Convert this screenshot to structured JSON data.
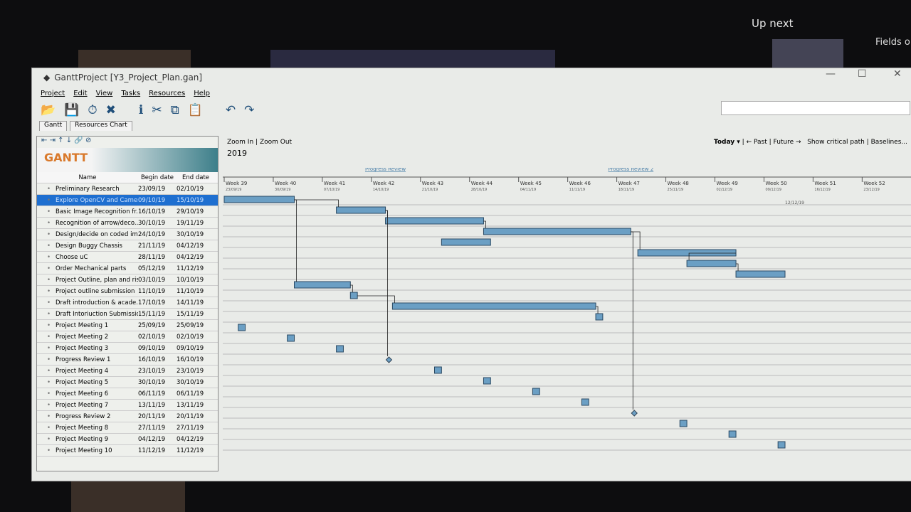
{
  "overlay": {
    "up_next": "Up next",
    "side_title": "Fields o"
  },
  "window": {
    "title": "GanttProject [Y3_Project_Plan.gan]",
    "controls": [
      "—",
      "☐",
      "✕"
    ]
  },
  "menu": [
    "Project",
    "Edit",
    "View",
    "Tasks",
    "Resources",
    "Help"
  ],
  "toolbar_icons": [
    "open-icon",
    "save-icon",
    "history-icon",
    "delete-icon",
    "info-icon",
    "cut-icon",
    "copy-icon",
    "paste-icon",
    "undo-icon",
    "redo-icon"
  ],
  "tabs": [
    "Gantt",
    "Resources Chart"
  ],
  "logo": "GANTT project",
  "table": {
    "headers": [
      "Name",
      "Begin date",
      "End date"
    ],
    "rows": [
      {
        "name": "Preliminary Research",
        "begin": "23/09/19",
        "end": "02/10/19"
      },
      {
        "name": "Explore OpenCV and Camer...",
        "begin": "09/10/19",
        "end": "15/10/19",
        "selected": true
      },
      {
        "name": "Basic Image Recognition fr...",
        "begin": "16/10/19",
        "end": "29/10/19"
      },
      {
        "name": "Recognition of arrow/deco...",
        "begin": "30/10/19",
        "end": "19/11/19"
      },
      {
        "name": "Design/decide on coded im...",
        "begin": "24/10/19",
        "end": "30/10/19"
      },
      {
        "name": "Design Buggy Chassis",
        "begin": "21/11/19",
        "end": "04/12/19"
      },
      {
        "name": "Choose uC",
        "begin": "28/11/19",
        "end": "04/12/19"
      },
      {
        "name": "Order Mechanical parts",
        "begin": "05/12/19",
        "end": "11/12/19"
      },
      {
        "name": "Project Outline, plan and ris...",
        "begin": "03/10/19",
        "end": "10/10/19"
      },
      {
        "name": "Project outline submission",
        "begin": "11/10/19",
        "end": "11/10/19"
      },
      {
        "name": "Draft introduction & acade...",
        "begin": "17/10/19",
        "end": "14/11/19"
      },
      {
        "name": "Draft Intoriuction Submission",
        "begin": "15/11/19",
        "end": "15/11/19"
      },
      {
        "name": "Project Meeting 1",
        "begin": "25/09/19",
        "end": "25/09/19"
      },
      {
        "name": "Project Meeting 2",
        "begin": "02/10/19",
        "end": "02/10/19"
      },
      {
        "name": "Project Meeting 3",
        "begin": "09/10/19",
        "end": "09/10/19"
      },
      {
        "name": "Progress Review 1",
        "begin": "16/10/19",
        "end": "16/10/19",
        "milestone": true
      },
      {
        "name": "Project Meeting 4",
        "begin": "23/10/19",
        "end": "23/10/19"
      },
      {
        "name": "Project Meeting 5",
        "begin": "30/10/19",
        "end": "30/10/19"
      },
      {
        "name": "Project Meeting 6",
        "begin": "06/11/19",
        "end": "06/11/19"
      },
      {
        "name": "Project Meeting 7",
        "begin": "13/11/19",
        "end": "13/11/19"
      },
      {
        "name": "Progress Review 2",
        "begin": "20/11/19",
        "end": "20/11/19",
        "milestone": true
      },
      {
        "name": "Project Meeting 8",
        "begin": "27/11/19",
        "end": "27/11/19"
      },
      {
        "name": "Project Meeting 9",
        "begin": "04/12/19",
        "end": "04/12/19"
      },
      {
        "name": "Project Meeting 10",
        "begin": "11/12/19",
        "end": "11/12/19"
      }
    ]
  },
  "chart": {
    "zoom_in": "Zoom In",
    "zoom_out": "Zoom Out",
    "today": "Today ▾",
    "past": "← Past",
    "future": "Future →",
    "critical": "Show critical path",
    "baselines": "Baselines...",
    "year": "2019",
    "weeks": [
      {
        "w": "Week 39",
        "d": "23/09/19"
      },
      {
        "w": "Week 40",
        "d": "30/09/19"
      },
      {
        "w": "Week 41",
        "d": "07/10/19"
      },
      {
        "w": "Week 42",
        "d": "14/10/19"
      },
      {
        "w": "Week 43",
        "d": "21/10/19"
      },
      {
        "w": "Week 44",
        "d": "28/10/19"
      },
      {
        "w": "Week 45",
        "d": "04/11/19"
      },
      {
        "w": "Week 46",
        "d": "11/11/19"
      },
      {
        "w": "Week 47",
        "d": "18/11/19"
      },
      {
        "w": "Week 48",
        "d": "25/11/19"
      },
      {
        "w": "Week 49",
        "d": "02/12/19"
      },
      {
        "w": "Week 50",
        "d": "09/12/19"
      },
      {
        "w": "Week 51",
        "d": "16/12/19"
      },
      {
        "w": "Week 52",
        "d": "23/12/19"
      }
    ],
    "top_milestones": [
      "Progress Review",
      "Progress Review 2"
    ],
    "today_marker": "12/12/19",
    "bar_color": "#6b9fc4"
  }
}
